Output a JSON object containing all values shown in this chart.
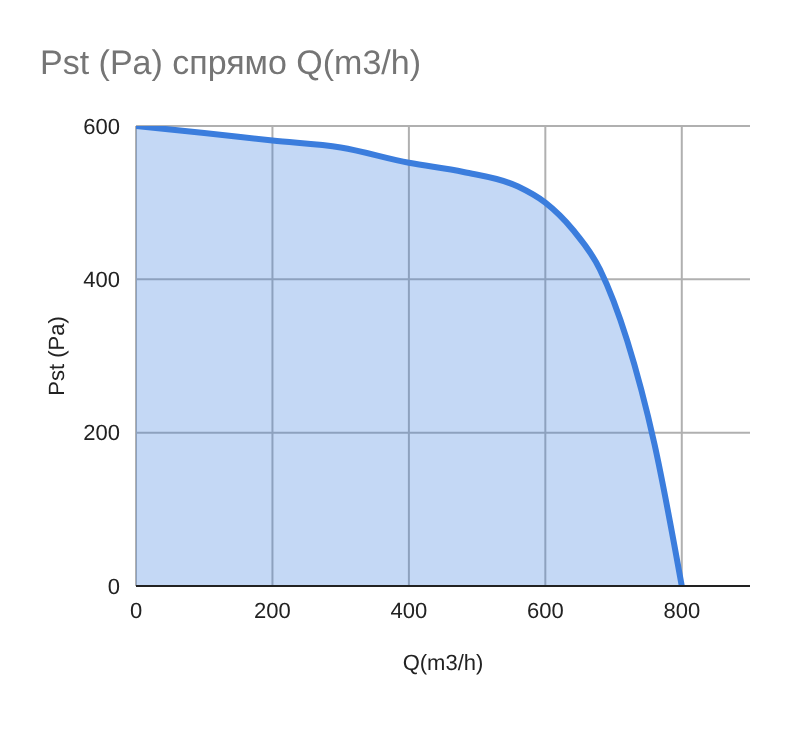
{
  "chart_data": {
    "type": "area",
    "title": "Pst (Pa) спрямо Q(m3/h)",
    "xlabel": "Q(m3/h)",
    "ylabel": "Pst (Pa)",
    "x": [
      0,
      100,
      200,
      300,
      400,
      480,
      560,
      600,
      640,
      680,
      720,
      760,
      800
    ],
    "series": [
      {
        "color": "#3b7ddd",
        "values": [
          600,
          591,
          581,
          572,
          552,
          540,
          521,
          500,
          465,
          413,
          320,
          185,
          0
        ]
      }
    ],
    "xlim": [
      0,
      900
    ],
    "xticks": [
      0,
      200,
      400,
      600,
      800
    ],
    "ylim": [
      0,
      600
    ],
    "yticks": [
      0,
      200,
      400,
      600
    ],
    "grid": true,
    "legend": false
  }
}
